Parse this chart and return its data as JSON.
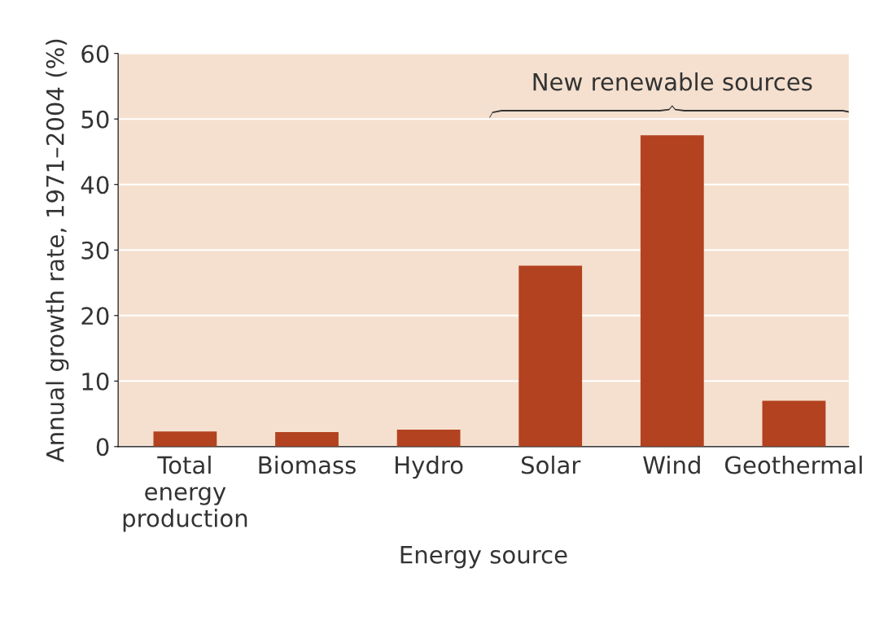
{
  "chart_data": {
    "type": "bar",
    "xlabel": "Energy source",
    "ylabel": "Annual growth rate, 1971–2004 (%)",
    "categories": [
      "Total\nenergy\nproduction",
      "Biomass",
      "Hydro",
      "Solar",
      "Wind",
      "Geothermal"
    ],
    "values": [
      2.3,
      2.2,
      2.6,
      27.6,
      47.5,
      7.0
    ],
    "color": "#b34220",
    "ylim": [
      0,
      60
    ],
    "yticks": [
      0,
      10,
      20,
      30,
      40,
      50,
      60
    ],
    "grid": "y",
    "annotations": [
      "New renewable sources"
    ]
  }
}
